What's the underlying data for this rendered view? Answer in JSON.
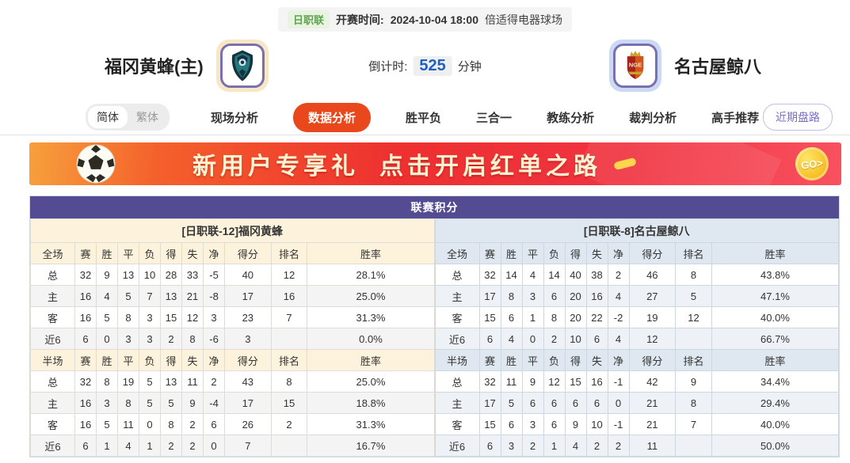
{
  "header": {
    "league_badge": "日职联",
    "kickoff_label": "开赛时间:",
    "kickoff_time": "2024-10-04 18:00",
    "venue": "倍适得电器球场",
    "home_team": "福冈黄蜂(主)",
    "away_team": "名古屋鲸八",
    "countdown_label": "倒计时:",
    "countdown_value": "525",
    "countdown_unit": "分钟"
  },
  "nav": {
    "lang_simplified": "简体",
    "lang_traditional": "繁体",
    "tabs": [
      {
        "label": "现场分析",
        "active": false
      },
      {
        "label": "数据分析",
        "active": true
      },
      {
        "label": "胜平负",
        "active": false
      },
      {
        "label": "三合一",
        "active": false
      },
      {
        "label": "教练分析",
        "active": false
      },
      {
        "label": "裁判分析",
        "active": false
      },
      {
        "label": "高手推荐",
        "active": false
      }
    ],
    "recent_trend": "近期盘路"
  },
  "banner": {
    "text_left": "新用户专享礼",
    "text_right": "点击开启红单之路",
    "go_label": "GO>"
  },
  "standings": {
    "title": "联赛积分",
    "columns_full": [
      "全场",
      "赛",
      "胜",
      "平",
      "负",
      "得",
      "失",
      "净",
      "得分",
      "排名",
      "胜率"
    ],
    "columns_half": [
      "半场",
      "赛",
      "胜",
      "平",
      "负",
      "得",
      "失",
      "净",
      "得分",
      "排名",
      "胜率"
    ],
    "home": {
      "team_header": "[日职联-12]福冈黄蜂",
      "full": [
        [
          "总",
          "32",
          "9",
          "13",
          "10",
          "28",
          "33",
          "-5",
          "40",
          "12",
          "28.1%"
        ],
        [
          "主",
          "16",
          "4",
          "5",
          "7",
          "13",
          "21",
          "-8",
          "17",
          "16",
          "25.0%"
        ],
        [
          "客",
          "16",
          "5",
          "8",
          "3",
          "15",
          "12",
          "3",
          "23",
          "7",
          "31.3%"
        ],
        [
          "近6",
          "6",
          "0",
          "3",
          "3",
          "2",
          "8",
          "-6",
          "3",
          "",
          "0.0%"
        ]
      ],
      "half": [
        [
          "总",
          "32",
          "8",
          "19",
          "5",
          "13",
          "11",
          "2",
          "43",
          "8",
          "25.0%"
        ],
        [
          "主",
          "16",
          "3",
          "8",
          "5",
          "5",
          "9",
          "-4",
          "17",
          "15",
          "18.8%"
        ],
        [
          "客",
          "16",
          "5",
          "11",
          "0",
          "8",
          "2",
          "6",
          "26",
          "2",
          "31.3%"
        ],
        [
          "近6",
          "6",
          "1",
          "4",
          "1",
          "2",
          "2",
          "0",
          "7",
          "",
          "16.7%"
        ]
      ]
    },
    "away": {
      "team_header": "[日职联-8]名古屋鲸八",
      "full": [
        [
          "总",
          "32",
          "14",
          "4",
          "14",
          "40",
          "38",
          "2",
          "46",
          "8",
          "43.8%"
        ],
        [
          "主",
          "17",
          "8",
          "3",
          "6",
          "20",
          "16",
          "4",
          "27",
          "5",
          "47.1%"
        ],
        [
          "客",
          "15",
          "6",
          "1",
          "8",
          "20",
          "22",
          "-2",
          "19",
          "12",
          "40.0%"
        ],
        [
          "近6",
          "6",
          "4",
          "0",
          "2",
          "10",
          "6",
          "4",
          "12",
          "",
          "66.7%"
        ]
      ],
      "half": [
        [
          "总",
          "32",
          "11",
          "9",
          "12",
          "15",
          "16",
          "-1",
          "42",
          "9",
          "34.4%"
        ],
        [
          "主",
          "17",
          "5",
          "6",
          "6",
          "6",
          "6",
          "0",
          "21",
          "8",
          "29.4%"
        ],
        [
          "客",
          "15",
          "6",
          "3",
          "6",
          "9",
          "10",
          "-1",
          "21",
          "7",
          "40.0%"
        ],
        [
          "近6",
          "6",
          "3",
          "2",
          "1",
          "4",
          "2",
          "2",
          "11",
          "",
          "50.0%"
        ]
      ]
    }
  },
  "colors": {
    "accent_orange": "#e8481c",
    "title_purple": "#544c93",
    "countdown_blue": "#1d5ec7",
    "badge_green": "#5fa44e",
    "home_label_red": "#d23b2e",
    "away_label_blue": "#2244cc"
  }
}
